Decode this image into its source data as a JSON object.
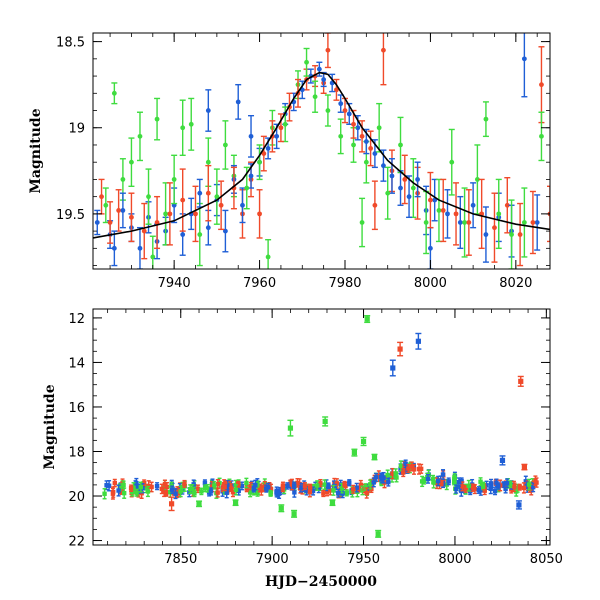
{
  "chart_data": [
    {
      "type": "scatter",
      "ylabel": "Magnitude",
      "xlabel": "",
      "xlim": [
        7921,
        8028
      ],
      "ylim": [
        19.82,
        18.45
      ],
      "y_inverted": true,
      "xticks": [
        7940,
        7960,
        7980,
        8000,
        8020
      ],
      "xtick_labels": [
        "7940",
        "7960",
        "7980",
        "8000",
        "8020"
      ],
      "yticks": [
        18.5,
        19,
        19.5
      ],
      "ytick_labels": [
        "18.5",
        "19",
        "19.5"
      ],
      "series_colors": {
        "blue": "#1f5fd6",
        "green": "#3fdc3f",
        "red": "#f04a2a",
        "model": "#000000"
      },
      "model_curve": {
        "x": [
          7921,
          7930,
          7940,
          7950,
          7956,
          7960,
          7964,
          7968,
          7971,
          7974,
          7976,
          7978,
          7980,
          7984,
          7990,
          7996,
          8002,
          8010,
          8020,
          8028
        ],
        "y": [
          19.64,
          19.6,
          19.54,
          19.42,
          19.3,
          19.16,
          19.0,
          18.83,
          18.72,
          18.68,
          18.69,
          18.75,
          18.83,
          19.0,
          19.19,
          19.32,
          19.42,
          19.5,
          19.56,
          19.59
        ]
      },
      "series": [
        {
          "color_key": "blue",
          "points": [
            [
              7922,
              19.55,
              0.07
            ],
            [
              7925,
              19.62,
              0.08
            ],
            [
              7928,
              19.48,
              0.1
            ],
            [
              7930,
              19.58,
              0.08
            ],
            [
              7932,
              19.7,
              0.12
            ],
            [
              7934,
              19.52,
              0.09
            ],
            [
              7936,
              19.66,
              0.1
            ],
            [
              7938,
              19.6,
              0.08
            ],
            [
              7940,
              19.45,
              0.1
            ],
            [
              7942,
              19.62,
              0.12
            ],
            [
              7944,
              19.5,
              0.09
            ],
            [
              7946,
              19.38,
              0.08
            ],
            [
              7948,
              19.58,
              0.1
            ],
            [
              7950,
              19.42,
              0.09
            ],
            [
              7952,
              19.6,
              0.12
            ],
            [
              7954,
              19.3,
              0.08
            ],
            [
              7956,
              19.45,
              0.1
            ],
            [
              7958,
              19.28,
              0.07
            ],
            [
              7960,
              19.2,
              0.08
            ],
            [
              7962,
              19.12,
              0.06
            ],
            [
              7964,
              19.05,
              0.07
            ],
            [
              7966,
              18.92,
              0.06
            ],
            [
              7968,
              18.85,
              0.05
            ],
            [
              7970,
              18.78,
              0.05
            ],
            [
              7972,
              18.7,
              0.04
            ],
            [
              7974,
              18.66,
              0.04
            ],
            [
              7975,
              18.72,
              0.04
            ],
            [
              7977,
              18.74,
              0.05
            ],
            [
              7979,
              18.86,
              0.05
            ],
            [
              7981,
              18.92,
              0.06
            ],
            [
              7983,
              19.0,
              0.07
            ],
            [
              7985,
              19.08,
              0.07
            ],
            [
              7987,
              19.15,
              0.08
            ],
            [
              7989,
              19.22,
              0.09
            ],
            [
              7991,
              19.28,
              0.1
            ],
            [
              7993,
              19.35,
              0.1
            ],
            [
              7995,
              19.4,
              0.12
            ],
            [
              7997,
              19.3,
              0.1
            ],
            [
              7999,
              19.48,
              0.14
            ],
            [
              8001,
              19.42,
              0.12
            ],
            [
              8004,
              19.5,
              0.14
            ],
            [
              8007,
              19.55,
              0.15
            ],
            [
              8010,
              19.45,
              0.13
            ],
            [
              8013,
              19.62,
              0.16
            ],
            [
              8016,
              19.52,
              0.14
            ],
            [
              8019,
              19.6,
              0.15
            ],
            [
              8022,
              18.6,
              0.22
            ],
            [
              8025,
              19.55,
              0.16
            ],
            [
              7948,
              18.9,
              0.12
            ],
            [
              7955,
              18.85,
              0.1
            ],
            [
              7958,
              19.05,
              0.12
            ],
            [
              7926,
              19.7,
              0.1
            ],
            [
              8000,
              19.7,
              0.12
            ]
          ]
        },
        {
          "color_key": "green",
          "points": [
            [
              7924,
              19.45,
              0.1
            ],
            [
              7926,
              18.8,
              0.06
            ],
            [
              7928,
              19.3,
              0.12
            ],
            [
              7930,
              19.2,
              0.14
            ],
            [
              7932,
              19.05,
              0.14
            ],
            [
              7934,
              19.4,
              0.16
            ],
            [
              7936,
              18.95,
              0.12
            ],
            [
              7938,
              19.5,
              0.18
            ],
            [
              7940,
              19.3,
              0.14
            ],
            [
              7942,
              19.0,
              0.16
            ],
            [
              7944,
              18.98,
              0.15
            ],
            [
              7946,
              19.62,
              0.18
            ],
            [
              7948,
              19.2,
              0.14
            ],
            [
              7950,
              19.4,
              0.16
            ],
            [
              7952,
              19.1,
              0.14
            ],
            [
              7954,
              19.28,
              0.12
            ],
            [
              7957,
              19.35,
              0.12
            ],
            [
              7960,
              19.2,
              0.1
            ],
            [
              7963,
              19.0,
              0.1
            ],
            [
              7966,
              18.98,
              0.1
            ],
            [
              7969,
              18.75,
              0.08
            ],
            [
              7971,
              18.62,
              0.08
            ],
            [
              7973,
              18.82,
              0.09
            ],
            [
              7976,
              18.9,
              0.09
            ],
            [
              7979,
              19.05,
              0.1
            ],
            [
              7982,
              19.1,
              0.1
            ],
            [
              7985,
              19.2,
              0.12
            ],
            [
              7988,
              19.0,
              0.14
            ],
            [
              7990,
              19.38,
              0.15
            ],
            [
              7993,
              19.1,
              0.16
            ],
            [
              7996,
              19.35,
              0.17
            ],
            [
              7999,
              19.55,
              0.18
            ],
            [
              8002,
              19.48,
              0.18
            ],
            [
              8005,
              19.2,
              0.19
            ],
            [
              8008,
              19.55,
              0.2
            ],
            [
              8011,
              19.3,
              0.2
            ],
            [
              8013,
              18.95,
              0.1
            ],
            [
              8016,
              19.5,
              0.2
            ],
            [
              8019,
              19.62,
              0.2
            ],
            [
              8022,
              19.55,
              0.2
            ],
            [
              8026,
              19.05,
              0.14
            ],
            [
              7935,
              19.75,
              0.12
            ],
            [
              7962,
              19.75,
              0.1
            ],
            [
              7984,
              19.55,
              0.14
            ]
          ]
        },
        {
          "color_key": "red",
          "points": [
            [
              7923,
              19.4,
              0.1
            ],
            [
              7925,
              19.55,
              0.12
            ],
            [
              7927,
              19.48,
              0.12
            ],
            [
              7930,
              19.52,
              0.14
            ],
            [
              7933,
              19.6,
              0.16
            ],
            [
              7936,
              19.55,
              0.15
            ],
            [
              7939,
              19.5,
              0.18
            ],
            [
              7942,
              19.42,
              0.18
            ],
            [
              7945,
              19.5,
              0.16
            ],
            [
              7948,
              19.38,
              0.16
            ],
            [
              7951,
              19.45,
              0.14
            ],
            [
              7954,
              19.35,
              0.12
            ],
            [
              7956,
              19.5,
              0.14
            ],
            [
              7958,
              19.3,
              0.1
            ],
            [
              7961,
              19.15,
              0.1
            ],
            [
              7963,
              19.05,
              0.09
            ],
            [
              7965,
              19.0,
              0.08
            ],
            [
              7967,
              18.88,
              0.08
            ],
            [
              7969,
              18.8,
              0.08
            ],
            [
              7971,
              18.72,
              0.06
            ],
            [
              7973,
              18.7,
              0.06
            ],
            [
              7975,
              18.74,
              0.06
            ],
            [
              7978,
              18.78,
              0.06
            ],
            [
              7980,
              18.9,
              0.07
            ],
            [
              7982,
              18.98,
              0.08
            ],
            [
              7984,
              19.05,
              0.09
            ],
            [
              7986,
              19.12,
              0.1
            ],
            [
              7987,
              19.45,
              0.14
            ],
            [
              7989,
              18.55,
              0.2
            ],
            [
              7991,
              19.25,
              0.12
            ],
            [
              7994,
              19.3,
              0.14
            ],
            [
              7997,
              19.38,
              0.15
            ],
            [
              8000,
              19.42,
              0.16
            ],
            [
              8003,
              19.48,
              0.18
            ],
            [
              8006,
              19.5,
              0.18
            ],
            [
              8009,
              19.55,
              0.19
            ],
            [
              8012,
              19.5,
              0.2
            ],
            [
              8015,
              19.58,
              0.2
            ],
            [
              8018,
              19.45,
              0.16
            ],
            [
              8021,
              19.62,
              0.18
            ],
            [
              8024,
              19.55,
              0.18
            ],
            [
              8026,
              18.75,
              0.22
            ],
            [
              8028,
              19.5,
              0.16
            ],
            [
              7976,
              18.55,
              0.1
            ],
            [
              7960,
              19.5,
              0.14
            ]
          ]
        }
      ]
    },
    {
      "type": "scatter",
      "ylabel": "Magnitude",
      "xlabel": "HJD−2450000",
      "xlim": [
        7802,
        8052
      ],
      "ylim": [
        22.2,
        11.6
      ],
      "y_inverted": true,
      "xticks": [
        7850,
        7900,
        7950,
        8000,
        8050
      ],
      "xtick_labels": [
        "7850",
        "7900",
        "7950",
        "8000",
        "8050"
      ],
      "yticks": [
        12,
        14,
        16,
        18,
        20,
        22
      ],
      "ytick_labels": [
        "12",
        "14",
        "16",
        "18",
        "20",
        "22"
      ],
      "series_colors": {
        "blue": "#1f5fd6",
        "green": "#3fdc3f",
        "red": "#f04a2a"
      },
      "outliers": [
        {
          "color_key": "green",
          "x": 7952,
          "y": 12.05,
          "err": 0.15
        },
        {
          "color_key": "red",
          "x": 7970,
          "y": 13.4,
          "err": 0.3
        },
        {
          "color_key": "blue",
          "x": 7980,
          "y": 13.05,
          "err": 0.35
        },
        {
          "color_key": "blue",
          "x": 7966,
          "y": 14.25,
          "err": 0.35
        },
        {
          "color_key": "red",
          "x": 8036,
          "y": 14.85,
          "err": 0.22
        },
        {
          "color_key": "green",
          "x": 7910,
          "y": 16.95,
          "err": 0.35
        },
        {
          "color_key": "green",
          "x": 7929,
          "y": 16.65,
          "err": 0.2
        },
        {
          "color_key": "green",
          "x": 7950,
          "y": 17.55,
          "err": 0.18
        },
        {
          "color_key": "green",
          "x": 7945,
          "y": 18.05,
          "err": 0.15
        },
        {
          "color_key": "green",
          "x": 7956,
          "y": 18.25,
          "err": 0.12
        },
        {
          "color_key": "blue",
          "x": 8026,
          "y": 18.4,
          "err": 0.2
        },
        {
          "color_key": "red",
          "x": 8038,
          "y": 18.7,
          "err": 0.12
        },
        {
          "color_key": "green",
          "x": 7958,
          "y": 21.7,
          "err": 0.15
        },
        {
          "color_key": "green",
          "x": 7905,
          "y": 20.55,
          "err": 0.15
        },
        {
          "color_key": "green",
          "x": 7912,
          "y": 20.8,
          "err": 0.15
        },
        {
          "color_key": "red",
          "x": 7845,
          "y": 20.35,
          "err": 0.3
        },
        {
          "color_key": "green",
          "x": 7860,
          "y": 20.35,
          "err": 0.12
        },
        {
          "color_key": "blue",
          "x": 8035,
          "y": 20.4,
          "err": 0.18
        },
        {
          "color_key": "green",
          "x": 7880,
          "y": 20.3,
          "err": 0.12
        },
        {
          "color_key": "green",
          "x": 7933,
          "y": 20.3,
          "err": 0.12
        }
      ],
      "baseline_segments": [
        {
          "x0": 7808,
          "x1": 7955,
          "y": 19.65,
          "scatter": 0.25
        },
        {
          "x0": 7955,
          "x1": 7970,
          "y": 19.2,
          "scatter": 0.22
        },
        {
          "x0": 7970,
          "x1": 7982,
          "y": 18.75,
          "scatter": 0.2
        },
        {
          "x0": 7982,
          "x1": 8000,
          "y": 19.25,
          "scatter": 0.25
        },
        {
          "x0": 8000,
          "x1": 8045,
          "y": 19.55,
          "scatter": 0.25
        }
      ]
    }
  ]
}
